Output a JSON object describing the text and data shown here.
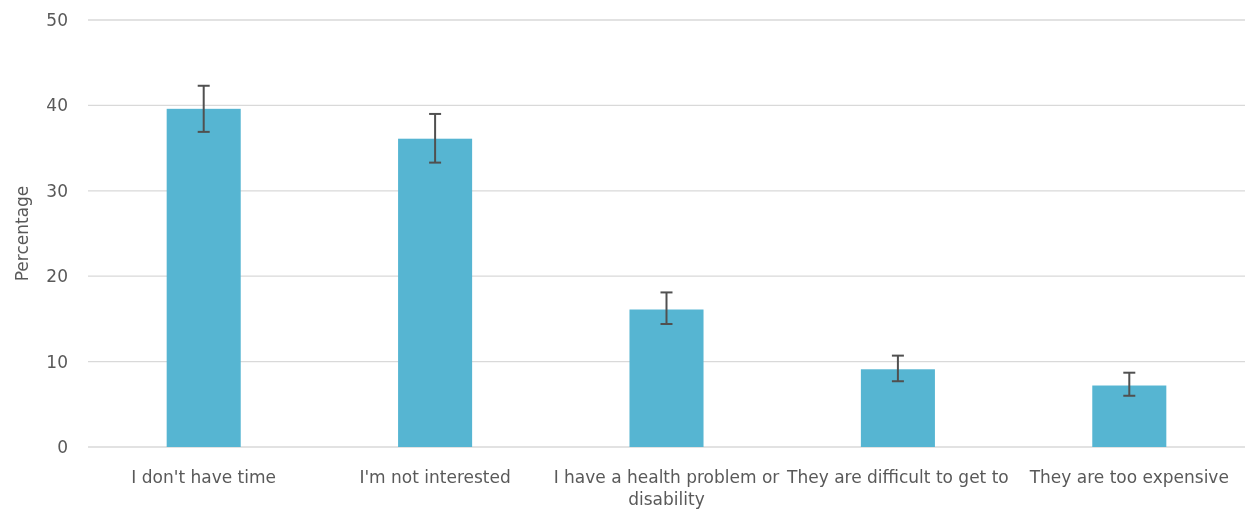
{
  "chart_data": {
    "type": "bar",
    "ylabel": "Percentage",
    "categories": [
      "I don't have time",
      "I'm not interested",
      "I have a health problem or disability",
      "They are difficult to get to",
      "They are too expensive"
    ],
    "values": [
      39.6,
      36.1,
      16.1,
      9.1,
      7.2
    ],
    "errors": [
      [
        36.9,
        42.3
      ],
      [
        33.3,
        39.0
      ],
      [
        14.4,
        18.1
      ],
      [
        7.7,
        10.7
      ],
      [
        6.0,
        8.7
      ]
    ],
    "color": "#56b5d2",
    "ylim": [
      0,
      50
    ],
    "yticks": [
      0,
      10,
      20,
      30,
      40,
      50
    ],
    "grid": "y"
  }
}
